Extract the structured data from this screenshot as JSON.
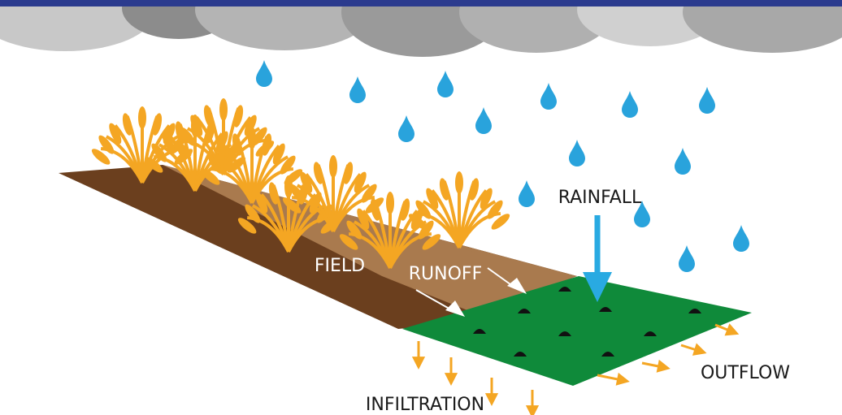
{
  "nodes": [
    {
      "label": "RAINFALL"
    },
    {
      "label": "FIELD"
    },
    {
      "label": "RUNOFF"
    },
    {
      "label": "OUTFLOW"
    },
    {
      "label": "INFILTRATION"
    }
  ]
}
